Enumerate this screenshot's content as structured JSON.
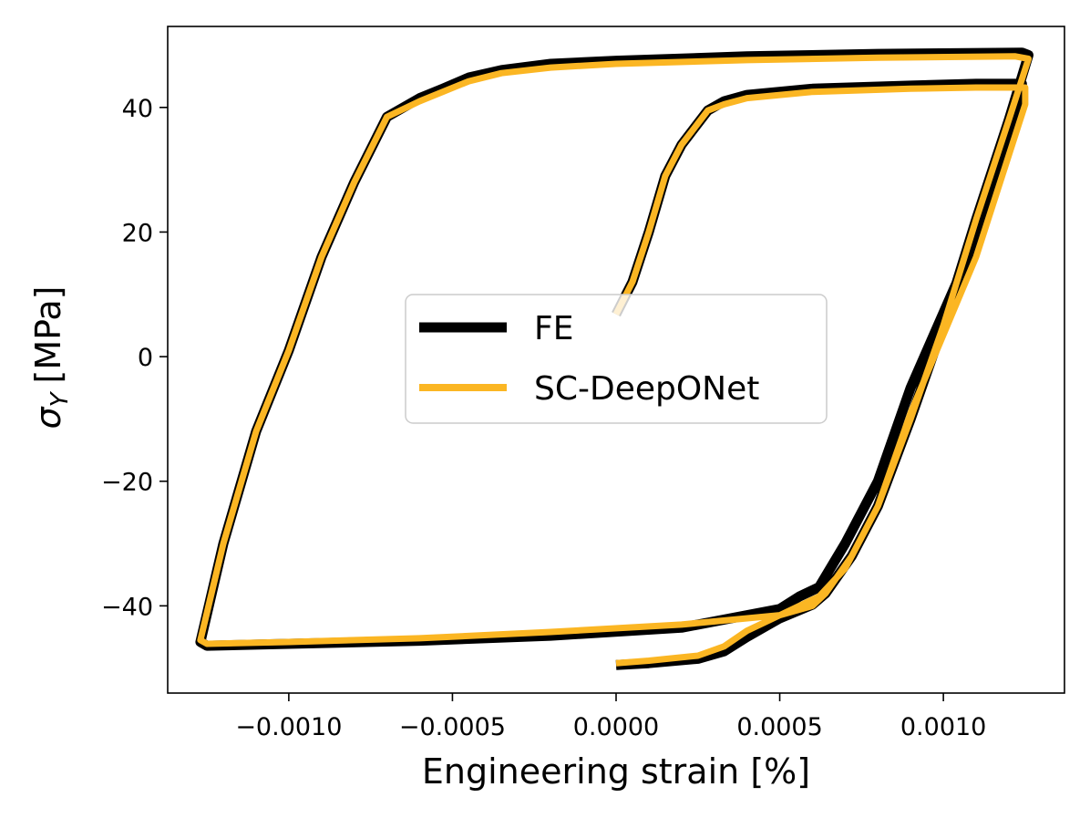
{
  "chart_data": {
    "type": "line",
    "title": "",
    "xlabel": "Engineering strain [%]",
    "ylabel_symbol": "σ",
    "ylabel_subscript": "Y",
    "ylabel_unit": "[MPa]",
    "xlim": [
      -0.00137,
      0.00137
    ],
    "ylim": [
      -54,
      53
    ],
    "xticks": [
      -0.001,
      -0.0005,
      0.0,
      0.0005,
      0.001
    ],
    "xtick_labels": [
      "−0.0010",
      "−0.0005",
      "0.0000",
      "0.0005",
      "0.0010"
    ],
    "yticks": [
      -40,
      -20,
      0,
      20,
      40
    ],
    "ytick_labels": [
      "−40",
      "−20",
      "0",
      "20",
      "40"
    ],
    "grid": false,
    "legend_position": "center",
    "colors": {
      "FE": "#000000",
      "SC-DeepONet": "#fbb623"
    },
    "series": [
      {
        "name": "FE",
        "x": [
          0.0,
          5e-05,
          0.0001,
          0.00015,
          0.0002,
          0.00028,
          0.00033,
          0.0004,
          0.0006,
          0.0009,
          0.0011,
          0.00124,
          0.00124,
          0.0011,
          0.0009,
          0.0008,
          0.0007,
          0.00062,
          0.00056,
          0.0005,
          0.0002,
          -0.0002,
          -0.0006,
          -0.001,
          -0.00125,
          -0.00127,
          -0.0012,
          -0.0011,
          -0.001,
          -0.0009,
          -0.0008,
          -0.0007,
          -0.0006,
          -0.00053,
          -0.00045,
          -0.00035,
          -0.0002,
          0.0,
          0.0004,
          0.0008,
          0.00124,
          0.00126,
          0.0012,
          0.0011,
          0.001,
          0.0009,
          0.0008,
          0.00072,
          0.00064,
          0.0006,
          0.0005,
          0.0004,
          0.00033,
          0.00025,
          0.0001,
          0.0
        ],
        "y": [
          6.8,
          12.0,
          20.0,
          29.0,
          34.0,
          39.5,
          41.0,
          42.0,
          43.0,
          43.5,
          43.8,
          43.8,
          41.0,
          19.0,
          -5.0,
          -20.0,
          -30.0,
          -37.0,
          -38.5,
          -40.5,
          -43.5,
          -44.8,
          -45.6,
          -46.1,
          -46.4,
          -45.8,
          -30.0,
          -12.0,
          1.0,
          16.0,
          28.0,
          38.5,
          41.5,
          43.0,
          44.8,
          46.0,
          47.0,
          47.5,
          48.2,
          48.6,
          48.8,
          48.4,
          38.0,
          22.0,
          5.0,
          -10.0,
          -24.0,
          -32.0,
          -38.0,
          -39.8,
          -42.0,
          -45.0,
          -47.3,
          -48.5,
          -49.2,
          -49.5
        ]
      },
      {
        "name": "SC-DeepONet",
        "x": [
          0.0,
          5e-05,
          0.0001,
          0.00015,
          0.0002,
          0.00028,
          0.00033,
          0.0004,
          0.0006,
          0.0009,
          0.0011,
          0.00125,
          0.00125,
          0.0011,
          0.0009,
          0.0008,
          0.0007,
          0.00062,
          0.00056,
          0.0005,
          0.0002,
          -0.0002,
          -0.0006,
          -0.001,
          -0.00125,
          -0.00127,
          -0.0012,
          -0.0011,
          -0.001,
          -0.0009,
          -0.0008,
          -0.0007,
          -0.0006,
          -0.00053,
          -0.00045,
          -0.00035,
          -0.0002,
          0.0,
          0.0004,
          0.0008,
          0.00122,
          0.00126,
          0.0012,
          0.0011,
          0.001,
          0.0009,
          0.0008,
          0.00072,
          0.00064,
          0.0006,
          0.0005,
          0.0004,
          0.00033,
          0.00025,
          0.0001,
          0.0
        ],
        "y": [
          6.8,
          12.0,
          20.0,
          29.0,
          34.0,
          39.5,
          40.5,
          41.5,
          42.5,
          43.0,
          43.2,
          43.2,
          40.5,
          16.0,
          -9.0,
          -24.0,
          -34.0,
          -38.5,
          -40.0,
          -41.5,
          -43.0,
          -44.2,
          -45.2,
          -45.8,
          -46.1,
          -45.5,
          -30.0,
          -12.0,
          1.0,
          16.0,
          28.0,
          38.5,
          41.0,
          42.5,
          44.2,
          45.5,
          46.4,
          47.0,
          47.6,
          48.0,
          48.2,
          47.8,
          38.0,
          22.0,
          5.0,
          -10.0,
          -24.0,
          -32.0,
          -38.0,
          -40.0,
          -41.5,
          -44.0,
          -46.5,
          -48.0,
          -48.8,
          -49.2
        ]
      }
    ]
  }
}
